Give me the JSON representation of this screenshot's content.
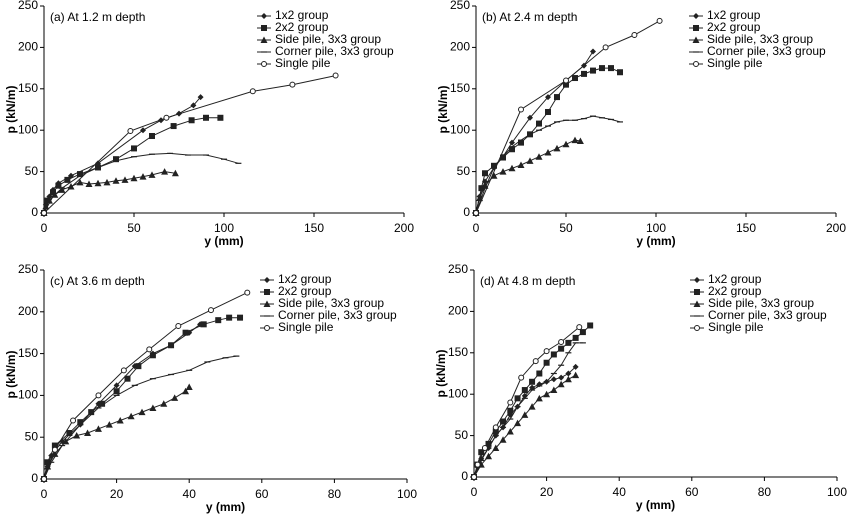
{
  "chart_data": [
    {
      "type": "line",
      "title": "(a) At 1.2 m depth",
      "xlabel": "y (mm)",
      "ylabel": "p (kN/m)",
      "xlim": [
        0,
        200
      ],
      "xticks": [
        0,
        50,
        100,
        150,
        200
      ],
      "ylim": [
        0,
        250
      ],
      "yticks": [
        0,
        50,
        100,
        150,
        200,
        250
      ],
      "legend": "upper right",
      "series": [
        {
          "name": "1x2 group",
          "color": "#222",
          "marker": "diamond",
          "x": [
            0,
            1,
            3,
            5,
            8,
            15,
            30,
            55,
            65,
            75,
            83,
            87
          ],
          "values": [
            0,
            10,
            20,
            28,
            36,
            45,
            60,
            100,
            112,
            120,
            130,
            140
          ]
        },
        {
          "name": "2x2 group",
          "color": "#222",
          "marker": "square",
          "x": [
            0,
            2,
            5,
            8,
            13,
            20,
            30,
            40,
            50,
            60,
            72,
            82,
            90,
            98
          ],
          "values": [
            0,
            15,
            25,
            33,
            40,
            47,
            55,
            65,
            78,
            93,
            105,
            112,
            115,
            115
          ]
        },
        {
          "name": "Side pile, 3x3 group",
          "color": "#222",
          "marker": "triangle",
          "x": [
            0,
            1,
            3,
            6,
            10,
            15,
            20,
            25,
            30,
            35,
            40,
            45,
            50,
            55,
            60,
            67,
            73
          ],
          "values": [
            0,
            8,
            15,
            22,
            28,
            32,
            37,
            35,
            36,
            37,
            39,
            40,
            42,
            44,
            46,
            50,
            48
          ]
        },
        {
          "name": "Corner pile, 3x3 group",
          "color": "#222",
          "marker": "dash",
          "x": [
            0,
            5,
            10,
            20,
            30,
            40,
            50,
            60,
            70,
            80,
            90,
            100,
            108
          ],
          "values": [
            0,
            20,
            30,
            45,
            55,
            63,
            68,
            71,
            72,
            70,
            70,
            65,
            60
          ]
        },
        {
          "name": "Single pile",
          "color": "#222",
          "marker": "circle",
          "x": [
            0,
            48,
            68,
            116,
            138,
            162
          ],
          "values": [
            0,
            99,
            115,
            147,
            155,
            166
          ]
        }
      ]
    },
    {
      "type": "line",
      "title": "(b) At 2.4 m depth",
      "xlabel": "y (mm)",
      "ylabel": "p (kN/m)",
      "xlim": [
        0,
        200
      ],
      "xticks": [
        0,
        50,
        100,
        150,
        200
      ],
      "ylim": [
        0,
        250
      ],
      "yticks": [
        0,
        50,
        100,
        150,
        200,
        250
      ],
      "legend": "upper right",
      "series": [
        {
          "name": "1x2 group",
          "color": "#222",
          "marker": "diamond",
          "x": [
            0,
            2,
            5,
            10,
            15,
            20,
            30,
            40,
            50,
            60,
            65
          ],
          "values": [
            0,
            20,
            38,
            55,
            68,
            85,
            115,
            140,
            160,
            178,
            195
          ]
        },
        {
          "name": "2x2 group",
          "color": "#222",
          "marker": "square",
          "x": [
            0,
            3,
            5,
            10,
            15,
            20,
            25,
            30,
            35,
            40,
            45,
            50,
            55,
            60,
            65,
            70,
            75,
            80
          ],
          "values": [
            0,
            30,
            48,
            57,
            67,
            77,
            85,
            95,
            108,
            122,
            140,
            155,
            163,
            168,
            172,
            175,
            175,
            170
          ]
        },
        {
          "name": "Side pile, 3x3 group",
          "color": "#222",
          "marker": "triangle",
          "x": [
            0,
            2,
            5,
            10,
            15,
            20,
            25,
            30,
            35,
            40,
            45,
            50,
            55,
            58
          ],
          "values": [
            0,
            18,
            33,
            45,
            50,
            54,
            58,
            63,
            68,
            73,
            78,
            83,
            88,
            87
          ]
        },
        {
          "name": "Corner pile, 3x3 group",
          "color": "#222",
          "marker": "dash",
          "x": [
            0,
            5,
            10,
            15,
            20,
            25,
            30,
            35,
            40,
            45,
            50,
            55,
            60,
            65,
            70,
            75,
            80
          ],
          "values": [
            0,
            30,
            55,
            68,
            80,
            88,
            95,
            100,
            105,
            110,
            112,
            112,
            114,
            117,
            115,
            113,
            110
          ]
        },
        {
          "name": "Single pile",
          "color": "#222",
          "marker": "circle",
          "x": [
            0,
            25,
            50,
            72,
            88,
            102
          ],
          "values": [
            0,
            125,
            160,
            200,
            215,
            232
          ]
        }
      ]
    },
    {
      "type": "line",
      "title": "(c) At 3.6 m depth",
      "xlabel": "y (mm)",
      "ylabel": "p (kN/m)",
      "xlim": [
        0,
        100
      ],
      "xticks": [
        0,
        20,
        40,
        60,
        80,
        100
      ],
      "ylim": [
        0,
        250
      ],
      "yticks": [
        0,
        50,
        100,
        150,
        200,
        250
      ],
      "legend": "upper right",
      "series": [
        {
          "name": "1x2 group",
          "color": "#222",
          "marker": "diamond",
          "x": [
            0,
            1,
            2,
            5,
            10,
            15,
            20,
            25,
            30,
            35,
            40,
            43
          ],
          "values": [
            0,
            15,
            28,
            45,
            65,
            90,
            112,
            135,
            150,
            160,
            175,
            185
          ]
        },
        {
          "name": "2x2 group",
          "color": "#222",
          "marker": "square",
          "x": [
            0,
            1,
            3,
            7,
            10,
            13,
            16,
            20,
            23,
            26,
            30,
            35,
            39,
            44,
            48,
            51,
            54
          ],
          "values": [
            0,
            20,
            40,
            55,
            68,
            80,
            90,
            105,
            120,
            135,
            148,
            160,
            175,
            185,
            190,
            193,
            193
          ]
        },
        {
          "name": "Side pile, 3x3 group",
          "color": "#222",
          "marker": "triangle",
          "x": [
            0,
            1,
            3,
            6,
            9,
            12,
            15,
            18,
            21,
            24,
            27,
            30,
            33,
            36,
            39,
            40
          ],
          "values": [
            0,
            15,
            30,
            45,
            52,
            55,
            60,
            65,
            70,
            75,
            80,
            85,
            90,
            97,
            105,
            110
          ]
        },
        {
          "name": "Corner pile, 3x3 group",
          "color": "#222",
          "marker": "dash",
          "x": [
            0,
            2,
            5,
            10,
            15,
            20,
            25,
            30,
            35,
            40,
            45,
            50,
            53
          ],
          "values": [
            0,
            20,
            40,
            65,
            85,
            100,
            112,
            120,
            125,
            130,
            140,
            145,
            147
          ]
        },
        {
          "name": "Single pile",
          "color": "#222",
          "marker": "circle",
          "x": [
            0,
            3,
            8,
            15,
            22,
            29,
            37,
            46,
            56
          ],
          "values": [
            0,
            35,
            70,
            100,
            130,
            155,
            183,
            202,
            223
          ]
        }
      ]
    },
    {
      "type": "line",
      "title": "(d) At 4.8 m depth",
      "xlabel": "y (mm)",
      "ylabel": "p (kN/m)",
      "xlim": [
        0,
        100
      ],
      "xticks": [
        0,
        20,
        40,
        60,
        80,
        100
      ],
      "ylim": [
        0,
        250
      ],
      "yticks": [
        0,
        50,
        100,
        150,
        200,
        250
      ],
      "legend": "upper right",
      "series": [
        {
          "name": "1x2 group",
          "color": "#222",
          "marker": "diamond",
          "x": [
            0,
            1,
            2,
            4,
            6,
            8,
            10,
            12,
            14,
            16,
            18,
            20,
            22,
            24,
            26,
            28
          ],
          "values": [
            0,
            12,
            22,
            35,
            50,
            60,
            75,
            85,
            98,
            108,
            112,
            115,
            118,
            120,
            125,
            133
          ]
        },
        {
          "name": "2x2 group",
          "color": "#222",
          "marker": "square",
          "x": [
            0,
            1,
            2,
            4,
            6,
            8,
            10,
            12,
            14,
            16,
            18,
            20,
            22,
            24,
            26,
            28,
            30,
            32
          ],
          "values": [
            0,
            15,
            30,
            40,
            55,
            67,
            80,
            95,
            105,
            115,
            125,
            138,
            148,
            155,
            162,
            168,
            175,
            183
          ]
        },
        {
          "name": "Side pile, 3x3 group",
          "color": "#222",
          "marker": "triangle",
          "x": [
            0,
            2,
            4,
            6,
            8,
            10,
            12,
            14,
            16,
            18,
            20,
            22,
            24,
            26,
            28
          ],
          "values": [
            0,
            15,
            25,
            35,
            45,
            55,
            65,
            75,
            85,
            95,
            100,
            105,
            112,
            118,
            123
          ]
        },
        {
          "name": "Corner pile, 3x3 group",
          "color": "#222",
          "marker": "dash",
          "x": [
            0,
            2,
            4,
            6,
            8,
            10,
            12,
            14,
            16,
            18,
            20,
            22,
            24,
            26,
            28,
            30
          ],
          "values": [
            0,
            20,
            35,
            50,
            60,
            70,
            85,
            95,
            105,
            110,
            115,
            125,
            135,
            150,
            162,
            162
          ]
        },
        {
          "name": "Single pile",
          "color": "#222",
          "marker": "circle",
          "x": [
            0,
            1,
            3,
            6,
            10,
            13,
            17,
            20,
            24,
            29
          ],
          "values": [
            0,
            15,
            35,
            60,
            90,
            120,
            140,
            152,
            163,
            181
          ]
        }
      ]
    }
  ]
}
